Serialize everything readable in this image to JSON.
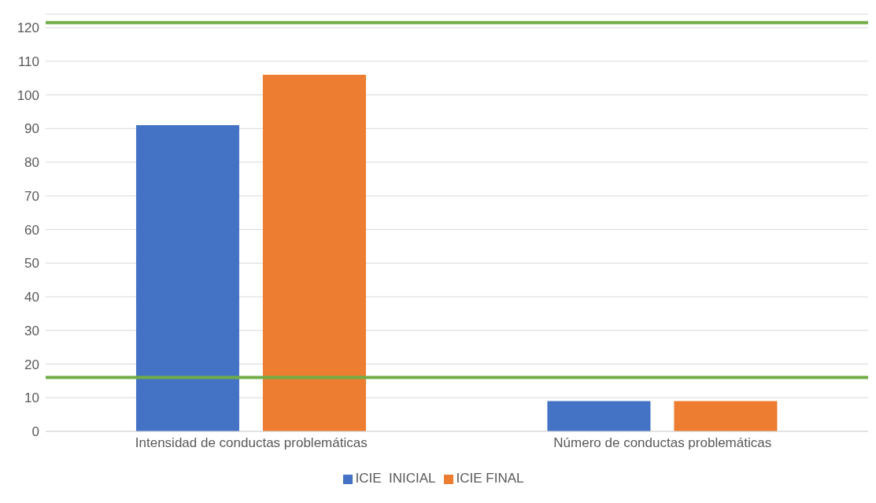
{
  "chart_data": {
    "type": "bar",
    "categories": [
      "Intensidad de conductas problemáticas",
      "Número de conductas problemáticas"
    ],
    "series": [
      {
        "name": "ICIE  INICIAL",
        "color": "#4472c4",
        "values": [
          91,
          9
        ]
      },
      {
        "name": "ICIE FINAL",
        "color": "#ed7d31",
        "values": [
          106,
          9
        ]
      }
    ],
    "ylim": [
      0,
      124
    ],
    "yticks": [
      0,
      10,
      20,
      30,
      40,
      50,
      60,
      70,
      80,
      90,
      100,
      110,
      120
    ],
    "grid": "y",
    "legend": "bottom",
    "ref_lines": [
      {
        "axis": "y",
        "value": 121.5,
        "color": "#70ad47"
      },
      {
        "axis": "y",
        "value": 16,
        "color": "#70ad47"
      }
    ]
  }
}
